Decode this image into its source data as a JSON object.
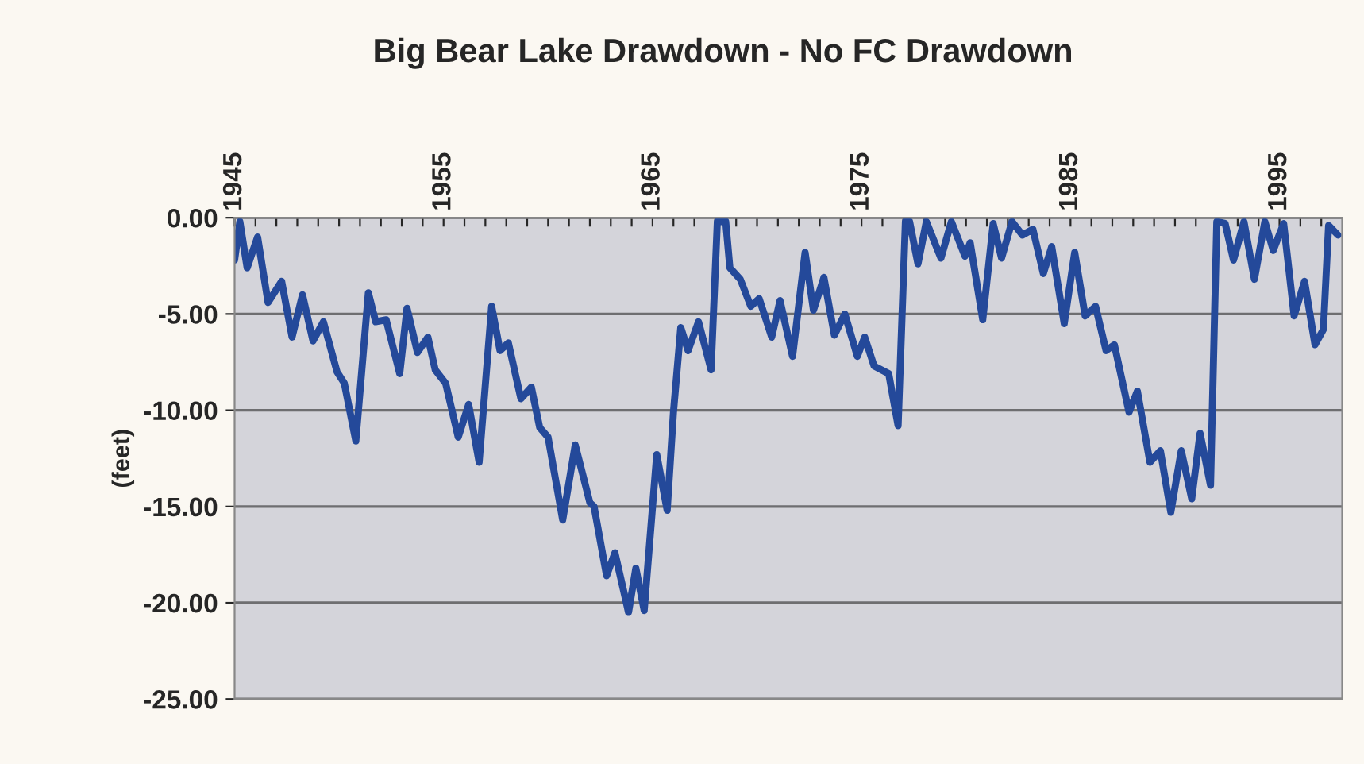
{
  "chart_data": {
    "type": "line",
    "title": "Big Bear Lake Drawdown - No FC Drawdown",
    "ylabel": "(feet)",
    "x": [
      1945.0,
      1945.25,
      1945.6,
      1946.1,
      1946.6,
      1947.25,
      1947.75,
      1948.25,
      1948.75,
      1949.25,
      1949.9,
      1950.25,
      1950.8,
      1951.4,
      1951.75,
      1952.25,
      1952.9,
      1953.25,
      1953.75,
      1954.25,
      1954.6,
      1955.1,
      1955.7,
      1956.2,
      1956.7,
      1957.3,
      1957.7,
      1958.1,
      1958.7,
      1959.2,
      1959.6,
      1960.0,
      1960.7,
      1961.3,
      1962.0,
      1962.2,
      1962.8,
      1963.2,
      1963.85,
      1964.2,
      1964.6,
      1965.2,
      1965.7,
      1966.0,
      1966.35,
      1966.7,
      1967.2,
      1967.8,
      1968.1,
      1968.5,
      1968.7,
      1969.2,
      1969.7,
      1970.1,
      1970.7,
      1971.1,
      1971.7,
      1972.3,
      1972.7,
      1973.2,
      1973.7,
      1974.2,
      1974.8,
      1975.15,
      1975.6,
      1976.3,
      1976.75,
      1977.1,
      1977.3,
      1977.7,
      1978.1,
      1978.8,
      1979.3,
      1979.95,
      1980.2,
      1980.8,
      1981.3,
      1981.7,
      1982.2,
      1982.7,
      1983.2,
      1983.7,
      1984.1,
      1984.7,
      1985.2,
      1985.7,
      1986.2,
      1986.7,
      1987.1,
      1987.8,
      1988.2,
      1988.8,
      1989.3,
      1989.8,
      1990.3,
      1990.8,
      1991.2,
      1991.7,
      1992.0,
      1992.4,
      1992.8,
      1993.3,
      1993.8,
      1994.3,
      1994.7,
      1995.2,
      1995.7,
      1996.2,
      1996.7,
      1997.1,
      1997.35,
      1997.8
    ],
    "series": [
      {
        "color": "#24499a",
        "values": [
          -2.2,
          -0.2,
          -2.6,
          -1.0,
          -4.4,
          -3.3,
          -6.2,
          -4.0,
          -6.4,
          -5.4,
          -8.0,
          -8.6,
          -11.6,
          -3.9,
          -5.4,
          -5.3,
          -8.1,
          -4.7,
          -7.0,
          -6.2,
          -7.9,
          -8.6,
          -11.4,
          -9.7,
          -12.7,
          -4.6,
          -6.9,
          -6.5,
          -9.4,
          -8.8,
          -10.9,
          -11.4,
          -15.7,
          -11.8,
          -14.8,
          -15.0,
          -18.6,
          -17.4,
          -20.5,
          -18.2,
          -20.4,
          -12.3,
          -15.2,
          -10.1,
          -5.7,
          -6.9,
          -5.4,
          -7.9,
          -0.2,
          -0.2,
          -2.6,
          -3.2,
          -4.6,
          -4.2,
          -6.2,
          -4.3,
          -7.2,
          -1.8,
          -4.8,
          -3.1,
          -6.1,
          -5.0,
          -7.2,
          -6.2,
          -7.7,
          -8.1,
          -10.8,
          -0.2,
          -0.2,
          -2.4,
          -0.2,
          -2.1,
          -0.2,
          -2.0,
          -1.3,
          -5.3,
          -0.3,
          -2.1,
          -0.2,
          -0.9,
          -0.6,
          -2.9,
          -1.5,
          -5.5,
          -1.8,
          -5.1,
          -4.6,
          -6.9,
          -6.6,
          -10.1,
          -9.0,
          -12.7,
          -12.1,
          -15.3,
          -12.1,
          -14.6,
          -11.2,
          -13.9,
          -0.2,
          -0.3,
          -2.2,
          -0.2,
          -3.2,
          -0.2,
          -1.7,
          -0.3,
          -5.1,
          -3.3,
          -6.6,
          -5.8,
          -0.4,
          -0.9
        ]
      }
    ],
    "xlim": [
      1945,
      1998
    ],
    "xticks": [
      1945,
      {
        "value": 1946,
        "label": null
      },
      {
        "value": 1947,
        "label": null
      },
      {
        "value": 1948,
        "label": null
      },
      {
        "value": 1949,
        "label": null
      },
      {
        "value": 1950,
        "label": null
      },
      {
        "value": 1951,
        "label": null
      },
      {
        "value": 1952,
        "label": null
      },
      {
        "value": 1953,
        "label": null
      },
      {
        "value": 1954,
        "label": null
      },
      1955,
      {
        "value": 1956,
        "label": null
      },
      {
        "value": 1957,
        "label": null
      },
      {
        "value": 1958,
        "label": null
      },
      {
        "value": 1959,
        "label": null
      },
      {
        "value": 1960,
        "label": null
      },
      {
        "value": 1961,
        "label": null
      },
      {
        "value": 1962,
        "label": null
      },
      {
        "value": 1963,
        "label": null
      },
      {
        "value": 1964,
        "label": null
      },
      1965,
      {
        "value": 1966,
        "label": null
      },
      {
        "value": 1967,
        "label": null
      },
      {
        "value": 1968,
        "label": null
      },
      {
        "value": 1969,
        "label": null
      },
      {
        "value": 1970,
        "label": null
      },
      {
        "value": 1971,
        "label": null
      },
      {
        "value": 1972,
        "label": null
      },
      {
        "value": 1973,
        "label": null
      },
      {
        "value": 1974,
        "label": null
      },
      1975,
      {
        "value": 1976,
        "label": null
      },
      {
        "value": 1977,
        "label": null
      },
      {
        "value": 1978,
        "label": null
      },
      {
        "value": 1979,
        "label": null
      },
      {
        "value": 1980,
        "label": null
      },
      {
        "value": 1981,
        "label": null
      },
      {
        "value": 1982,
        "label": null
      },
      {
        "value": 1983,
        "label": null
      },
      {
        "value": 1984,
        "label": null
      },
      1985,
      {
        "value": 1986,
        "label": null
      },
      {
        "value": 1987,
        "label": null
      },
      {
        "value": 1988,
        "label": null
      },
      {
        "value": 1989,
        "label": null
      },
      {
        "value": 1990,
        "label": null
      },
      {
        "value": 1991,
        "label": null
      },
      {
        "value": 1992,
        "label": null
      },
      {
        "value": 1993,
        "label": null
      },
      {
        "value": 1994,
        "label": null
      },
      1995,
      {
        "value": 1996,
        "label": null
      },
      {
        "value": 1997,
        "label": null
      }
    ],
    "ylim": [
      -25,
      0
    ],
    "yticks": [
      {
        "value": 0,
        "label": "0.00"
      },
      {
        "value": -5,
        "label": "-5.00"
      },
      {
        "value": -10,
        "label": "-10.00"
      },
      {
        "value": -15,
        "label": "-15.00"
      },
      {
        "value": -20,
        "label": "-20.00"
      },
      {
        "value": -25,
        "label": "-25.00"
      }
    ],
    "grid": "y",
    "legend": false,
    "marker": "none",
    "line_style": "solid"
  }
}
